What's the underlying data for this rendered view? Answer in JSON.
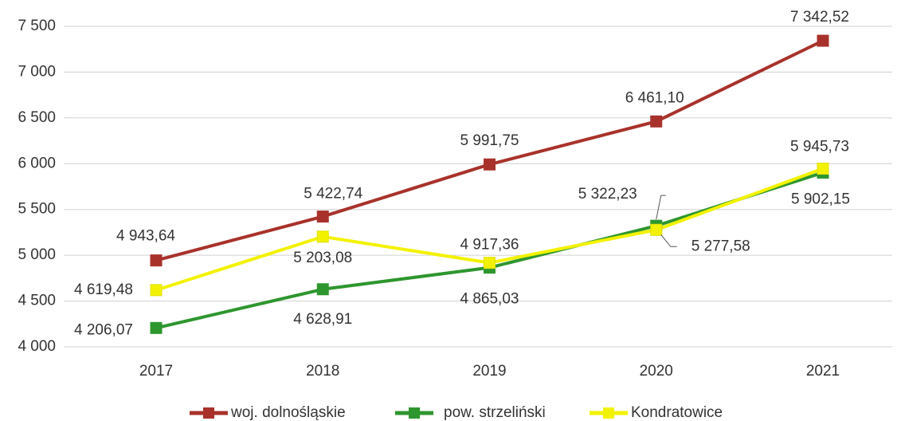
{
  "chart_data": {
    "type": "line",
    "categories": [
      "2017",
      "2018",
      "2019",
      "2020",
      "2021"
    ],
    "ylim": [
      4000,
      7500
    ],
    "yticks": [
      {
        "value": 4000,
        "label": "4 000"
      },
      {
        "value": 4500,
        "label": "4 500"
      },
      {
        "value": 5000,
        "label": "5 000"
      },
      {
        "value": 5500,
        "label": "5 500"
      },
      {
        "value": 6000,
        "label": "6 000"
      },
      {
        "value": 6500,
        "label": "6 500"
      },
      {
        "value": 7000,
        "label": "7 000"
      },
      {
        "value": 7500,
        "label": "7 500"
      }
    ],
    "grid": true,
    "legend": "bottom",
    "series": [
      {
        "name": "woj. dolnośląskie",
        "color": "#a8322b",
        "values": [
          4943.64,
          5422.74,
          5991.75,
          6461.1,
          7342.52
        ],
        "value_labels": [
          "4 943,64",
          "5 422,74",
          "5 991,75",
          "6 461,10",
          "7 342,52"
        ]
      },
      {
        "name": "pow. strzeliński",
        "color": "#2e962e",
        "values": [
          4206.07,
          4628.91,
          4865.03,
          5322.23,
          5902.15
        ],
        "value_labels": [
          "4 206,07",
          "4 628,91",
          "4 865,03",
          "5 322,23",
          "5 902,15"
        ]
      },
      {
        "name": "Kondratowice",
        "color": "#f2f200",
        "values": [
          4619.48,
          5203.08,
          4917.36,
          5277.58,
          5945.73
        ],
        "value_labels": [
          "4 619,48",
          "5 203,08",
          "4 917,36",
          "5 277,58",
          "5 945,73"
        ]
      }
    ]
  }
}
